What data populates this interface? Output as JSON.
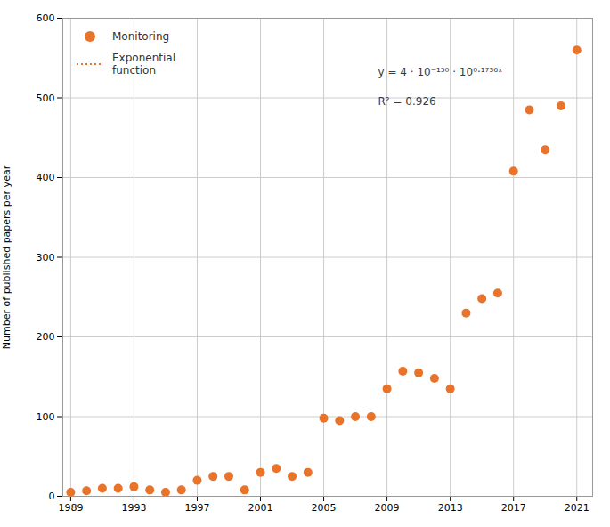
{
  "chart_data": {
    "type": "scatter",
    "x": [
      1989,
      1990,
      1991,
      1992,
      1993,
      1994,
      1995,
      1996,
      1997,
      1998,
      1999,
      2000,
      2001,
      2002,
      2003,
      2004,
      2005,
      2006,
      2007,
      2008,
      2009,
      2010,
      2011,
      2012,
      2013,
      2014,
      2015,
      2016,
      2017,
      2018,
      2019,
      2020,
      2021
    ],
    "ylabel": "Number of published papers per year",
    "xlim": [
      1988.5,
      2022
    ],
    "ylim": [
      0,
      600
    ],
    "xticks": [
      1989,
      1993,
      1997,
      2001,
      2005,
      2009,
      2013,
      2017,
      2021
    ],
    "yticks": [
      0,
      100,
      200,
      300,
      400,
      500,
      600
    ],
    "grid": true,
    "legend": "upper left",
    "annotations": [
      "y = 4 · 10⁻¹⁵⁰ · 10⁰·¹⁷³⁶ˣ",
      "R² = 0.926"
    ],
    "series": [
      {
        "name": "Monitoring",
        "type": "scatter",
        "marker": "circle",
        "color": "#E8732A",
        "values": [
          5,
          7,
          10,
          10,
          12,
          8,
          5,
          8,
          20,
          25,
          25,
          8,
          30,
          35,
          25,
          30,
          98,
          95,
          100,
          100,
          135,
          157,
          155,
          148,
          135,
          230,
          248,
          255,
          408,
          485,
          435,
          490,
          560
        ]
      },
      {
        "name": "Exponential\nfunction",
        "type": "line",
        "line_style": "dotted",
        "color": "#E8732A"
      }
    ]
  }
}
